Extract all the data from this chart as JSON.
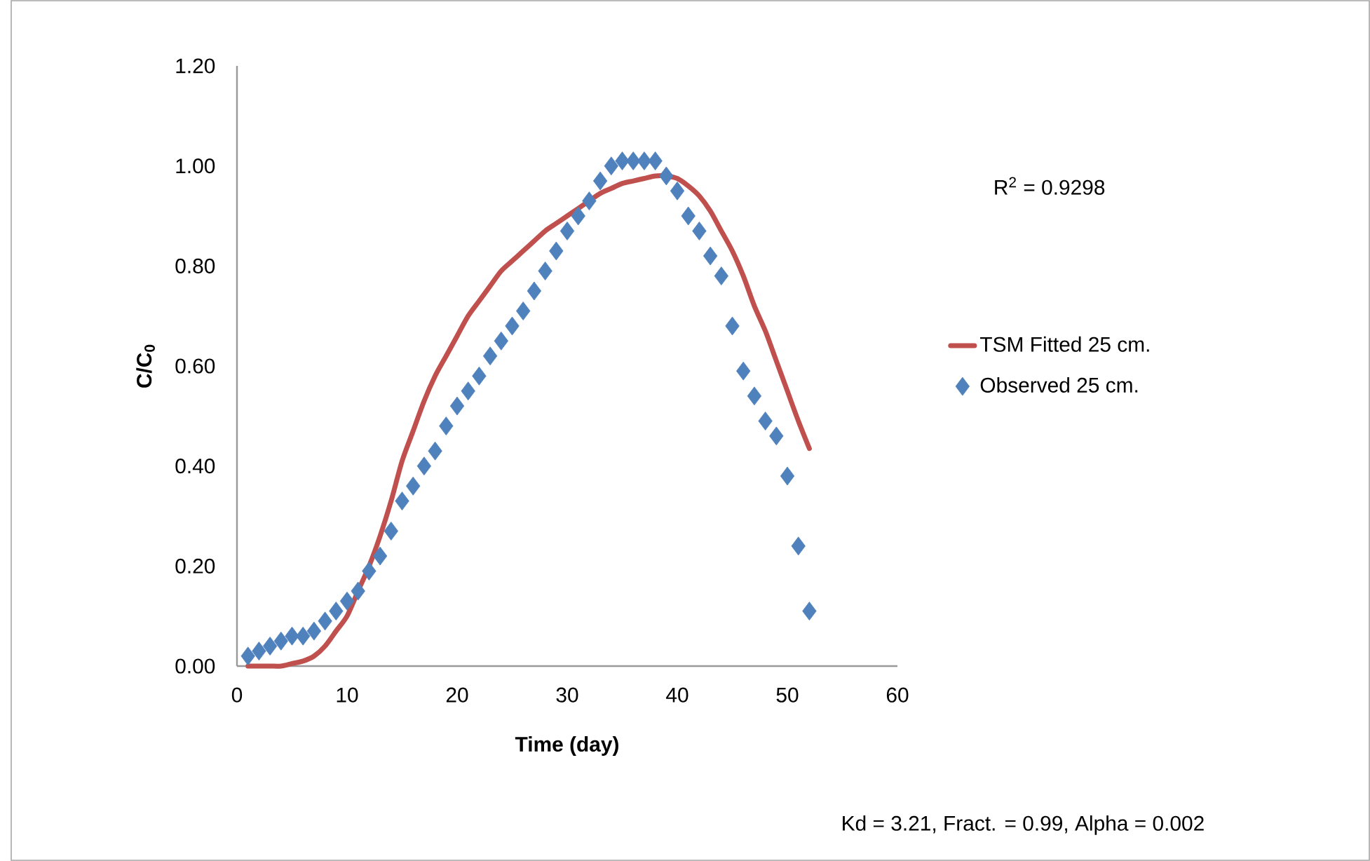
{
  "chart_data": {
    "type": "line",
    "xlabel": "Time (day)",
    "ylabel": "C/C$_{0}$",
    "xlim": [
      0,
      60
    ],
    "ylim": [
      0,
      1.2
    ],
    "xticks": [
      0,
      10,
      20,
      30,
      40,
      50,
      60
    ],
    "yticks": [
      {
        "value": 0,
        "label": "0.00"
      },
      {
        "value": 0.2,
        "label": "0.20"
      },
      {
        "value": 0.4,
        "label": "0.40"
      },
      {
        "value": 0.6,
        "label": "0.60"
      },
      {
        "value": 0.8,
        "label": "0.80"
      },
      {
        "value": 1.0,
        "label": "1.00"
      },
      {
        "value": 1.2,
        "label": "1.20"
      }
    ],
    "legend": "right",
    "annotations": [
      "R$^{2}$ = 0.9298",
      "Kd = 3.21, Fract. = 0.99, Alpha = 0.002"
    ],
    "series": [
      {
        "name": "TSM Fitted 25 cm.",
        "color": "#c0504d",
        "marker": "none",
        "x": [
          1,
          2,
          3,
          4,
          5,
          6,
          7,
          8,
          9,
          10,
          11,
          12,
          13,
          14,
          15,
          16,
          17,
          18,
          19,
          20,
          21,
          22,
          23,
          24,
          25,
          26,
          27,
          28,
          29,
          30,
          31,
          32,
          33,
          34,
          35,
          36,
          37,
          38,
          39,
          40,
          41,
          42,
          43,
          44,
          45,
          46,
          47,
          48,
          49,
          50,
          51,
          52
        ],
        "values": [
          0,
          0,
          0,
          0,
          0.005,
          0.01,
          0.02,
          0.04,
          0.07,
          0.1,
          0.15,
          0.2,
          0.26,
          0.33,
          0.41,
          0.47,
          0.53,
          0.58,
          0.62,
          0.66,
          0.7,
          0.73,
          0.76,
          0.79,
          0.81,
          0.83,
          0.85,
          0.87,
          0.885,
          0.9,
          0.915,
          0.93,
          0.945,
          0.955,
          0.965,
          0.97,
          0.975,
          0.98,
          0.98,
          0.975,
          0.96,
          0.94,
          0.91,
          0.87,
          0.83,
          0.78,
          0.72,
          0.67,
          0.61,
          0.55,
          0.49,
          0.435
        ]
      },
      {
        "name": "Observed 25 cm.",
        "type": "scatter",
        "color": "#4f81bd",
        "marker": "diamond",
        "x": [
          1,
          2,
          3,
          4,
          5,
          6,
          7,
          8,
          9,
          10,
          11,
          12,
          13,
          14,
          15,
          16,
          17,
          18,
          19,
          20,
          21,
          22,
          23,
          24,
          25,
          26,
          27,
          28,
          29,
          30,
          31,
          32,
          33,
          34,
          35,
          36,
          37,
          38,
          39,
          40,
          41,
          42,
          43,
          44,
          45,
          46,
          47,
          48,
          49,
          50,
          51,
          52
        ],
        "values": [
          0.02,
          0.03,
          0.04,
          0.05,
          0.06,
          0.06,
          0.07,
          0.09,
          0.11,
          0.13,
          0.15,
          0.19,
          0.22,
          0.27,
          0.33,
          0.36,
          0.4,
          0.43,
          0.48,
          0.52,
          0.55,
          0.58,
          0.62,
          0.65,
          0.68,
          0.71,
          0.75,
          0.79,
          0.83,
          0.87,
          0.9,
          0.93,
          0.97,
          1.0,
          1.01,
          1.01,
          1.01,
          1.01,
          0.98,
          0.95,
          0.9,
          0.87,
          0.82,
          0.78,
          0.68,
          0.59,
          0.54,
          0.49,
          0.46,
          0.38,
          0.24,
          0.11
        ]
      }
    ]
  }
}
